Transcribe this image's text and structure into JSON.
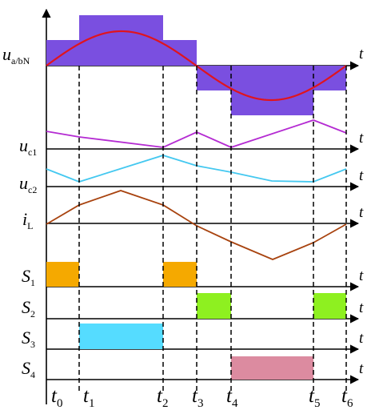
{
  "labels": {
    "u_abN": {
      "main": "u",
      "sub": "a/bN"
    },
    "u_c1": {
      "main": "u",
      "sub": "c1"
    },
    "u_c2": {
      "main": "u",
      "sub": "c2"
    },
    "i_L": {
      "main": "i",
      "sub": "L"
    },
    "S1": {
      "main": "S",
      "sub": "1"
    },
    "S2": {
      "main": "S",
      "sub": "2"
    },
    "S3": {
      "main": "S",
      "sub": "3"
    },
    "S4": {
      "main": "S",
      "sub": "4"
    },
    "t_axis": "t"
  },
  "time_labels": [
    {
      "main": "t",
      "sub": "0"
    },
    {
      "main": "t",
      "sub": "1"
    },
    {
      "main": "t",
      "sub": "2"
    },
    {
      "main": "t",
      "sub": "3"
    },
    {
      "main": "t",
      "sub": "4"
    },
    {
      "main": "t",
      "sub": "5"
    },
    {
      "main": "t",
      "sub": "6"
    }
  ],
  "colors": {
    "axis": "#000000",
    "pwm_fill": "#7a4fe0",
    "sine": "#e0141e",
    "u_c1": "#b42bd2",
    "u_c2": "#44c8f0",
    "i_L": "#a8430f",
    "S1": "#f5a900",
    "S2": "#8ef020",
    "S3": "#55dcff",
    "S4": "#dc8ba0"
  },
  "icons": {
    "axis_arrow": "arrow-right-icon"
  }
}
